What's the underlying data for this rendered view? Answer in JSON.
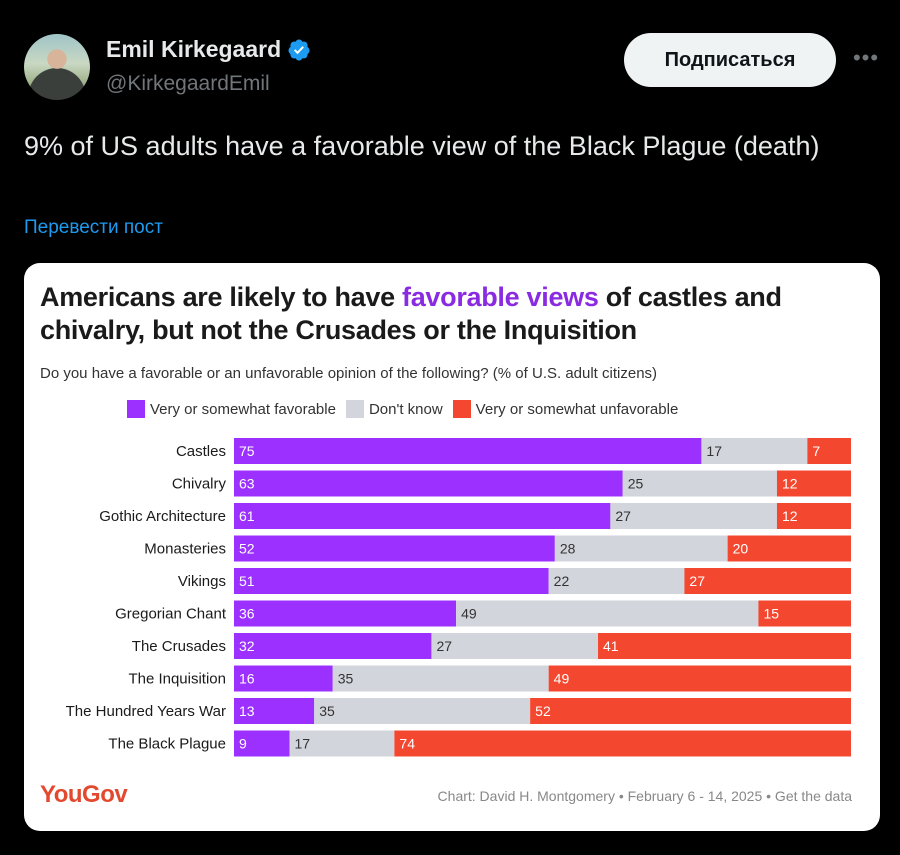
{
  "author": {
    "name": "Emil Kirkegaard",
    "handle": "@KirkegaardEmil"
  },
  "follow_label": "Подписаться",
  "more_icon": "more-icon",
  "tweet_text": "9% of US adults have a favorable view of the Black Plague (death)",
  "translate_label": "Перевести пост",
  "colors": {
    "favorable": "#9b30ff",
    "dont_know": "#d3d5dc",
    "unfavorable": "#f4472f",
    "link": "#1d9bf0"
  },
  "chart_data": {
    "type": "bar",
    "orientation": "horizontal",
    "stacked": true,
    "title_before": "Americans are likely to have ",
    "title_highlight": "favorable views",
    "title_after": " of castles and chivalry, but not the Crusades or the Inquisition",
    "subtitle": "Do you have a favorable or an unfavorable opinion of the following? (% of U.S. adult citizens)",
    "legend_placement": "top",
    "categories": [
      "Castles",
      "Chivalry",
      "Gothic Architecture",
      "Monasteries",
      "Vikings",
      "Gregorian Chant",
      "The Crusades",
      "The Inquisition",
      "The Hundred Years War",
      "The Black Plague"
    ],
    "series": [
      {
        "name": "Very or somewhat favorable",
        "values": [
          75,
          63,
          61,
          52,
          51,
          36,
          32,
          16,
          13,
          9
        ]
      },
      {
        "name": "Don't know",
        "values": [
          17,
          25,
          27,
          28,
          22,
          49,
          27,
          35,
          35,
          17
        ]
      },
      {
        "name": "Very or somewhat unfavorable",
        "values": [
          7,
          12,
          12,
          20,
          27,
          15,
          41,
          49,
          52,
          74
        ]
      }
    ],
    "source_logo": "YouGov",
    "credit": "Chart: David H. Montgomery • February 6 - 14, 2025 • Get the data"
  }
}
